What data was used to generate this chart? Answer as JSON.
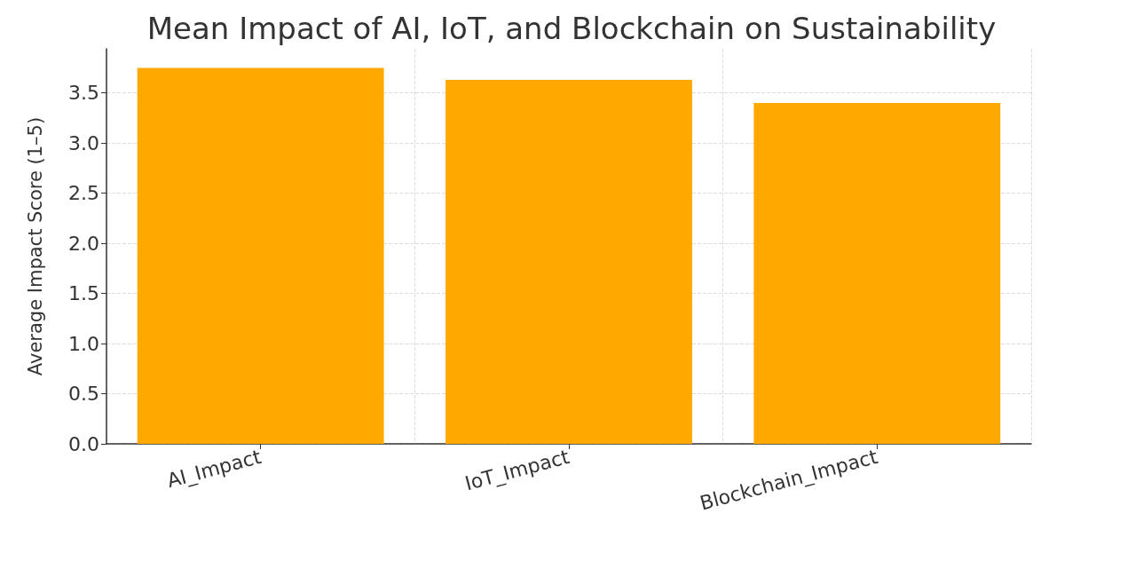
{
  "chart_data": {
    "type": "bar",
    "title": "Mean Impact of AI, IoT, and Blockchain on Sustainability",
    "ylabel": "Average Impact Score (1–5)",
    "categories": [
      "AI_Impact",
      "IoT_Impact",
      "Blockchain_Impact"
    ],
    "values": [
      3.75,
      3.63,
      3.4
    ],
    "color": "#ffa800",
    "ylim": [
      0,
      3.94
    ],
    "yticks": [
      {
        "value": 0,
        "label": "0.0"
      },
      {
        "value": 0.5,
        "label": "0.5"
      },
      {
        "value": 1,
        "label": "1.0"
      },
      {
        "value": 1.5,
        "label": "1.5"
      },
      {
        "value": 2,
        "label": "2.0"
      },
      {
        "value": 2.5,
        "label": "2.5"
      },
      {
        "value": 3,
        "label": "3.0"
      },
      {
        "value": 3.5,
        "label": "3.5"
      }
    ],
    "grid": true
  }
}
